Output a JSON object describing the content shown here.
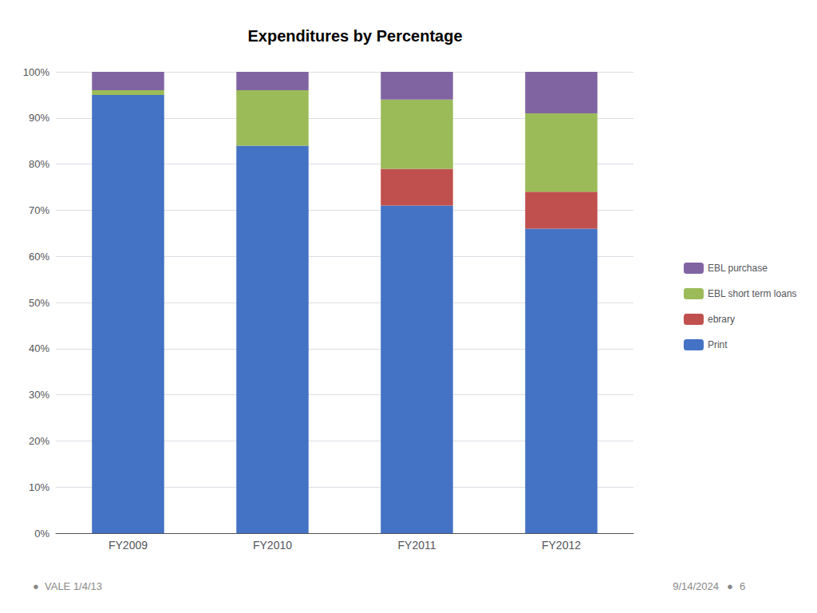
{
  "chart_data": {
    "type": "bar",
    "title": "Expenditures by Percentage",
    "categories": [
      "FY2009",
      "FY2010",
      "FY2011",
      "FY2012"
    ],
    "series": [
      {
        "name": "Print",
        "color": "#4472C4",
        "values": [
          95,
          84,
          71,
          66
        ]
      },
      {
        "name": "ebrary",
        "color": "#C0504D",
        "values": [
          0,
          0,
          8,
          8
        ]
      },
      {
        "name": "EBL short term loans",
        "color": "#9BBB59",
        "values": [
          1,
          12,
          15,
          17
        ]
      },
      {
        "name": "EBL purchase",
        "color": "#8064A2",
        "values": [
          4,
          4,
          6,
          9
        ]
      }
    ],
    "stacked": true,
    "ylim": [
      0,
      100
    ],
    "yticks": [
      {
        "value": 0,
        "label": "0%"
      },
      {
        "value": 10,
        "label": "10%"
      },
      {
        "value": 20,
        "label": "20%"
      },
      {
        "value": 30,
        "label": "30%"
      },
      {
        "value": 40,
        "label": "40%"
      },
      {
        "value": 50,
        "label": "50%"
      },
      {
        "value": 60,
        "label": "60%"
      },
      {
        "value": 70,
        "label": "70%"
      },
      {
        "value": 80,
        "label": "80%"
      },
      {
        "value": 90,
        "label": "90%"
      },
      {
        "value": 100,
        "label": "100%"
      }
    ],
    "grid": true,
    "legend": "right",
    "annotations": [
      "●",
      "VALE 1/4/13",
      "9/14/2024",
      "●",
      "6"
    ]
  }
}
